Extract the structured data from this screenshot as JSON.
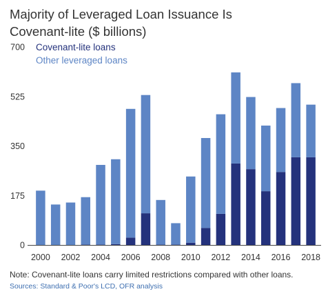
{
  "chart_data": {
    "type": "bar",
    "stacked": true,
    "title_line1": "Majority of Leveraged Loan Issuance Is",
    "title_line2": "Covenant-lite ($ billions)",
    "categories": [
      "2000",
      "2001",
      "2002",
      "2003",
      "2004",
      "2005",
      "2006",
      "2007",
      "2008",
      "2009",
      "2010",
      "2011",
      "2012",
      "2013",
      "2014",
      "2015",
      "2016",
      "2017",
      "2018"
    ],
    "series": [
      {
        "name": "Covenant-lite loans",
        "color": "#24327c",
        "values": [
          0,
          0,
          0,
          1,
          1,
          3,
          26,
          112,
          1,
          1,
          8,
          60,
          110,
          288,
          268,
          190,
          258,
          310,
          310
        ]
      },
      {
        "name": "Other leveraged loans",
        "color": "#5d85c5",
        "values": [
          192,
          143,
          150,
          168,
          282,
          300,
          455,
          418,
          158,
          76,
          234,
          318,
          352,
          322,
          255,
          232,
          226,
          262,
          186
        ]
      }
    ],
    "y_ticks": [
      "700",
      "525",
      "350",
      "175",
      "0"
    ],
    "x_tick_labels": [
      "2000",
      "2002",
      "2004",
      "2006",
      "2008",
      "2010",
      "2012",
      "2014",
      "2016",
      "2018"
    ],
    "ylim": [
      0,
      700
    ],
    "grid": false,
    "legend_position": "top-left"
  },
  "footer": {
    "note": "Note: Covenant-lite loans carry limited restrictions compared with other loans.",
    "source": "Sources: Standard & Poor's LCD, OFR analysis"
  }
}
